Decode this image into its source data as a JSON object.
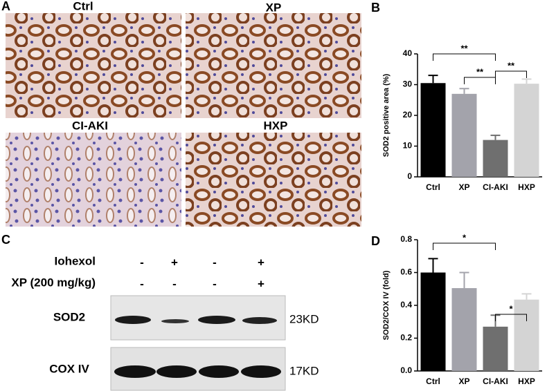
{
  "panel_letters": [
    "A",
    "B",
    "C",
    "D"
  ],
  "images": [
    {
      "label": "Ctrl"
    },
    {
      "label": "XP"
    },
    {
      "label": "CI-AKI"
    },
    {
      "label": "HXP"
    }
  ],
  "blot": {
    "treatments": [
      {
        "name": "Iohexol",
        "signs": [
          "-",
          "+",
          "-",
          "+"
        ]
      },
      {
        "name": "XP (200 mg/kg)",
        "signs": [
          "-",
          "-",
          "-",
          "+"
        ]
      }
    ],
    "bands": [
      {
        "name": "SOD2",
        "size": "23KD"
      },
      {
        "name": "COX IV",
        "size": "17KD"
      }
    ]
  },
  "chart_data": [
    {
      "type": "bar",
      "y_label": "SOD2 positive area (%)",
      "categories": [
        "Ctrl",
        "XP",
        "CI-AKI",
        "HXP"
      ],
      "values": [
        30.5,
        27,
        12,
        30.3
      ],
      "errors": [
        2.5,
        1.7,
        1.5,
        1.5
      ],
      "colors": [
        "#000000",
        "#a3a3ab",
        "#6f6f6f",
        "#d4d4d4"
      ],
      "ylim": [
        0,
        40
      ],
      "yticks": [
        0,
        10,
        20,
        30,
        40
      ],
      "annotations": [
        "**",
        "**",
        "**"
      ]
    },
    {
      "type": "bar",
      "y_label": "SOD2/COX IV (fold)",
      "categories": [
        "Ctrl",
        "XP",
        "CI-AKI",
        "HXP"
      ],
      "values": [
        0.6,
        0.505,
        0.27,
        0.435
      ],
      "errors": [
        0.085,
        0.095,
        0.07,
        0.035
      ],
      "colors": [
        "#000000",
        "#a3a3ab",
        "#6f6f6f",
        "#d4d4d4"
      ],
      "ylim": [
        0,
        0.8
      ],
      "yticks": [
        {
          "value": 0,
          "label": "0.0"
        },
        0.2,
        0.4,
        0.6,
        0.8
      ],
      "annotations": [
        "*",
        "*"
      ]
    }
  ]
}
